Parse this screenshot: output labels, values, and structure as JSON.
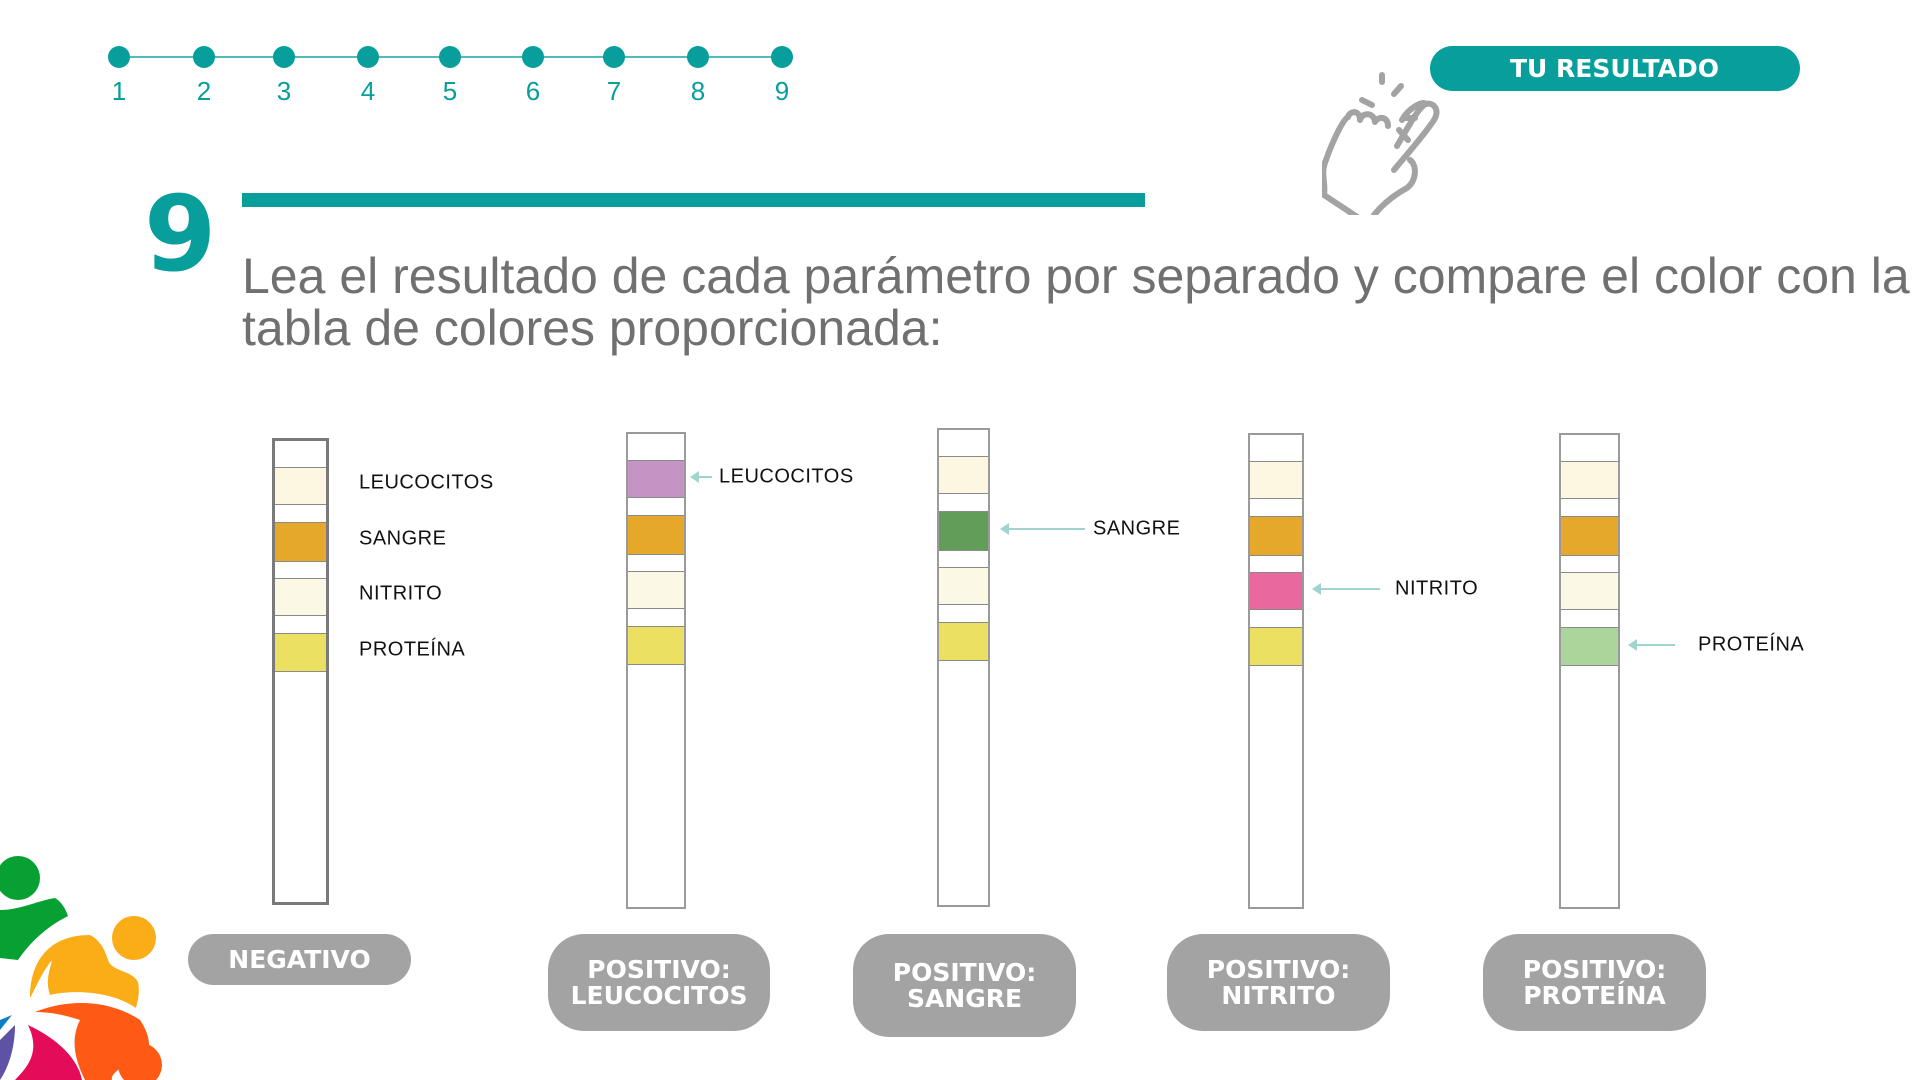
{
  "progress": {
    "steps": [
      "1",
      "2",
      "3",
      "4",
      "5",
      "6",
      "7",
      "8",
      "9"
    ],
    "current": 9,
    "color": "#079e9c"
  },
  "result_button": {
    "label": "TU RESULTADO",
    "icon": "hand-pointer-click-icon"
  },
  "step": {
    "number": "9",
    "instruction": "Lea el resultado de cada parámetro por separado y compare el color con la tabla de colores proporcionada:"
  },
  "strips": [
    {
      "result": "NEGATIVO",
      "pads": [
        "#fdf7e2",
        "#e6a82a",
        "#fbf8e6",
        "#ece063"
      ],
      "labels": [
        "LEUCOCITOS",
        "SANGRE",
        "NITRITO",
        "PROTEÍNA"
      ]
    },
    {
      "result": "POSITIVO: LEUCOCITOS",
      "pads": [
        "#c594c4",
        "#e6a82a",
        "#fbf8e6",
        "#ece063"
      ],
      "highlight": "LEUCOCITOS"
    },
    {
      "result": "POSITIVO: SANGRE",
      "pads": [
        "#fdf7e2",
        "#629e5a",
        "#fbf8e6",
        "#ece063"
      ],
      "highlight": "SANGRE"
    },
    {
      "result": "POSITIVO: NITRITO",
      "pads": [
        "#fdf7e2",
        "#e6a82a",
        "#e9699f",
        "#ece063"
      ],
      "highlight": "NITRITO"
    },
    {
      "result": "POSITIVO: PROTEÍNA",
      "pads": [
        "#fdf7e2",
        "#e6a82a",
        "#fbf8e6",
        "#acd59b"
      ],
      "highlight": "PROTEÍNA"
    }
  ],
  "logo": {
    "colors": [
      "#06a033",
      "#fbad18",
      "#fe5a16",
      "#e40b58",
      "#5e52a6",
      "#0b7fc6"
    ]
  }
}
